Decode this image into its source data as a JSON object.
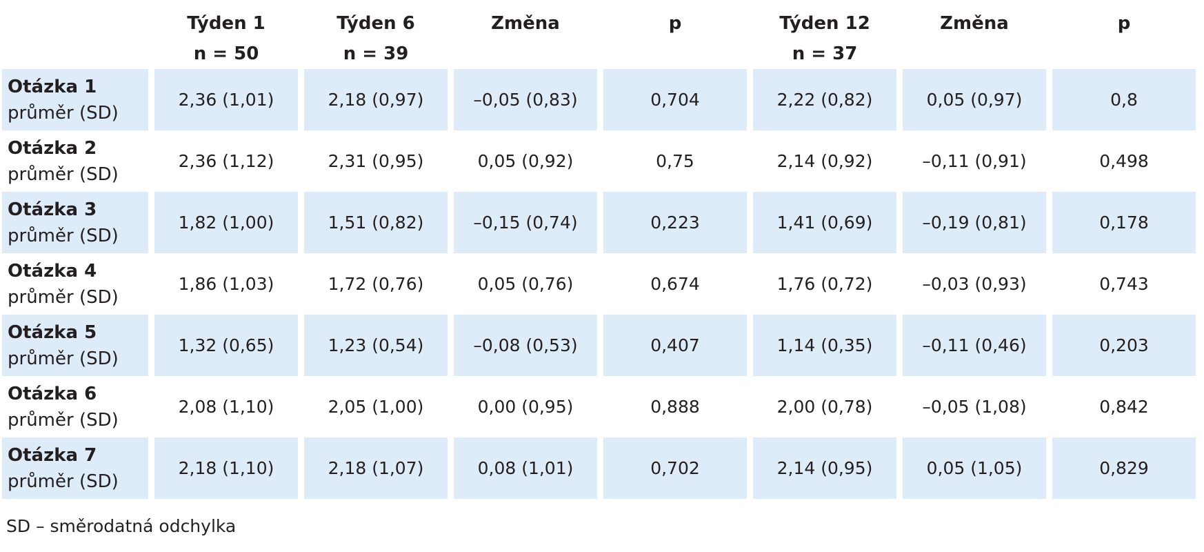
{
  "table": {
    "header": [
      [],
      [
        "Týden 1",
        "n = 50"
      ],
      [
        "Týden 6",
        "n = 39"
      ],
      [
        "Změna"
      ],
      [
        "p"
      ],
      [
        "Týden 12",
        "n = 37"
      ],
      [
        "Změna"
      ],
      [
        "p"
      ]
    ],
    "rows": [
      {
        "label": "Otázka 1",
        "sublabel": "průměr (SD)",
        "cells": [
          "2,36 (1,01)",
          "2,18 (0,97)",
          "–0,05 (0,83)",
          "0,704",
          "2,22 (0,82)",
          "0,05 (0,97)",
          "0,8"
        ]
      },
      {
        "label": "Otázka 2",
        "sublabel": "průměr (SD)",
        "cells": [
          "2,36 (1,12)",
          "2,31 (0,95)",
          "0,05 (0,92)",
          "0,75",
          "2,14 (0,92)",
          "–0,11 (0,91)",
          "0,498"
        ]
      },
      {
        "label": "Otázka 3",
        "sublabel": "průměr (SD)",
        "cells": [
          "1,82 (1,00)",
          "1,51 (0,82)",
          "–0,15 (0,74)",
          "0,223",
          "1,41 (0,69)",
          "–0,19 (0,81)",
          "0,178"
        ]
      },
      {
        "label": "Otázka 4",
        "sublabel": "průměr (SD)",
        "cells": [
          "1,86 (1,03)",
          "1,72 (0,76)",
          "0,05 (0,76)",
          "0,674",
          "1,76 (0,72)",
          "–0,03 (0,93)",
          "0,743"
        ]
      },
      {
        "label": "Otázka 5",
        "sublabel": "průměr (SD)",
        "cells": [
          "1,32 (0,65)",
          "1,23 (0,54)",
          "–0,08 (0,53)",
          "0,407",
          "1,14 (0,35)",
          "–0,11 (0,46)",
          "0,203"
        ]
      },
      {
        "label": "Otázka 6",
        "sublabel": "průměr (SD)",
        "cells": [
          "2,08 (1,10)",
          "2,05 (1,00)",
          "0,00 (0,95)",
          "0,888",
          "2,00 (0,78)",
          "–0,05 (1,08)",
          "0,842"
        ]
      },
      {
        "label": "Otázka 7",
        "sublabel": "průměr (SD)",
        "cells": [
          "2,18 (1,10)",
          "2,18 (1,07)",
          "0,08 (1,01)",
          "0,702",
          "2,14 (0,95)",
          "0,05 (1,05)",
          "0,829"
        ]
      }
    ],
    "footnote": "SD – směrodatná odchylka"
  }
}
